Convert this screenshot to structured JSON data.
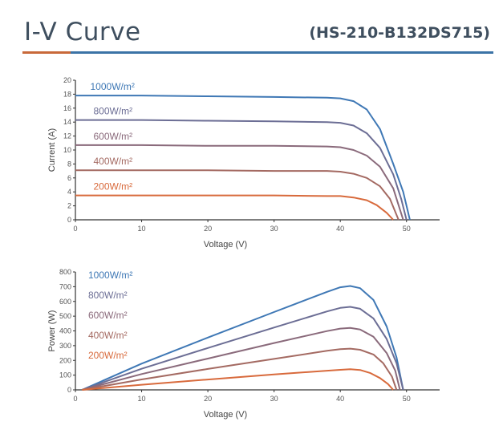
{
  "header": {
    "title": "I-V Curve",
    "model": "(HS-210-B132DS715)",
    "accent_left": "#c8693a",
    "accent_right": "#3b73a6"
  },
  "chart_data": [
    {
      "type": "line",
      "xlabel": "Voltage (V)",
      "ylabel": "Current (A)",
      "xlim": [
        0,
        55
      ],
      "ylim": [
        0,
        20
      ],
      "xticks": [
        0,
        10,
        20,
        30,
        40,
        50
      ],
      "yticks": [
        0,
        2,
        4,
        6,
        8,
        10,
        12,
        14,
        16,
        18,
        20
      ],
      "series": [
        {
          "name": "1000W/m²",
          "color": "#3f78b5",
          "x": [
            0,
            10,
            20,
            30,
            38,
            40,
            42,
            44,
            46,
            48,
            49.5,
            50.5
          ],
          "y": [
            17.8,
            17.8,
            17.7,
            17.6,
            17.5,
            17.4,
            17.0,
            15.8,
            13.0,
            8.0,
            4.0,
            0
          ]
        },
        {
          "name": "800W/m²",
          "color": "#6c6e95",
          "x": [
            0,
            10,
            20,
            30,
            38,
            40,
            42,
            44,
            46,
            48,
            49.2,
            50.0
          ],
          "y": [
            14.3,
            14.3,
            14.2,
            14.1,
            14.0,
            13.9,
            13.5,
            12.4,
            10.3,
            6.5,
            3.0,
            0
          ]
        },
        {
          "name": "600W/m²",
          "color": "#8a6a7b",
          "x": [
            0,
            10,
            20,
            30,
            38,
            40,
            42,
            44,
            46,
            48,
            49.5
          ],
          "y": [
            10.7,
            10.7,
            10.6,
            10.6,
            10.5,
            10.4,
            10.0,
            9.2,
            7.6,
            4.5,
            0
          ]
        },
        {
          "name": "400W/m²",
          "color": "#a46a62",
          "x": [
            0,
            10,
            20,
            30,
            38,
            40,
            42,
            44,
            46,
            47.5,
            48.8
          ],
          "y": [
            7.1,
            7.1,
            7.1,
            7.0,
            7.0,
            6.9,
            6.6,
            6.0,
            4.8,
            3.0,
            0
          ]
        },
        {
          "name": "200W/m²",
          "color": "#d86a3c",
          "x": [
            0,
            10,
            20,
            30,
            38,
            40,
            42,
            44,
            45.5,
            47.0,
            48.0
          ],
          "y": [
            3.5,
            3.5,
            3.5,
            3.5,
            3.4,
            3.4,
            3.2,
            2.8,
            2.1,
            1.0,
            0
          ]
        }
      ]
    },
    {
      "type": "line",
      "xlabel": "Voltage (V)",
      "ylabel": "Power (W)",
      "xlim": [
        0,
        55
      ],
      "ylim": [
        0,
        800
      ],
      "xticks": [
        0,
        10,
        20,
        30,
        40,
        50
      ],
      "yticks": [
        0,
        100,
        200,
        300,
        400,
        500,
        600,
        700,
        800
      ],
      "series": [
        {
          "name": "1000W/m²",
          "color": "#3f78b5",
          "x": [
            1,
            10,
            20,
            30,
            38,
            40,
            41.5,
            43,
            45,
            47,
            48.5,
            49.5
          ],
          "y": [
            0,
            178,
            355,
            528,
            665,
            696,
            705,
            690,
            610,
            430,
            220,
            0
          ]
        },
        {
          "name": "800W/m²",
          "color": "#6c6e95",
          "x": [
            1,
            10,
            20,
            30,
            38,
            40,
            41.5,
            43,
            45,
            47,
            48.5,
            49.5
          ],
          "y": [
            0,
            143,
            284,
            423,
            532,
            556,
            563,
            550,
            485,
            345,
            180,
            0
          ]
        },
        {
          "name": "600W/m²",
          "color": "#8a6a7b",
          "x": [
            1,
            10,
            20,
            30,
            38,
            40,
            41.5,
            43,
            45,
            47,
            48.3,
            49.0
          ],
          "y": [
            0,
            107,
            212,
            318,
            399,
            416,
            420,
            410,
            360,
            250,
            130,
            0
          ]
        },
        {
          "name": "400W/m²",
          "color": "#a46a62",
          "x": [
            1,
            10,
            20,
            30,
            38,
            40,
            41.5,
            43,
            45,
            46.5,
            47.8,
            48.5
          ],
          "y": [
            0,
            71,
            142,
            210,
            265,
            276,
            280,
            272,
            240,
            180,
            90,
            0
          ]
        },
        {
          "name": "200W/m²",
          "color": "#d86a3c",
          "x": [
            1,
            10,
            20,
            30,
            38,
            40,
            41.5,
            43,
            44.5,
            46,
            47.2,
            48.0
          ],
          "y": [
            0,
            35,
            70,
            105,
            130,
            136,
            140,
            135,
            115,
            80,
            40,
            0
          ]
        }
      ]
    }
  ]
}
